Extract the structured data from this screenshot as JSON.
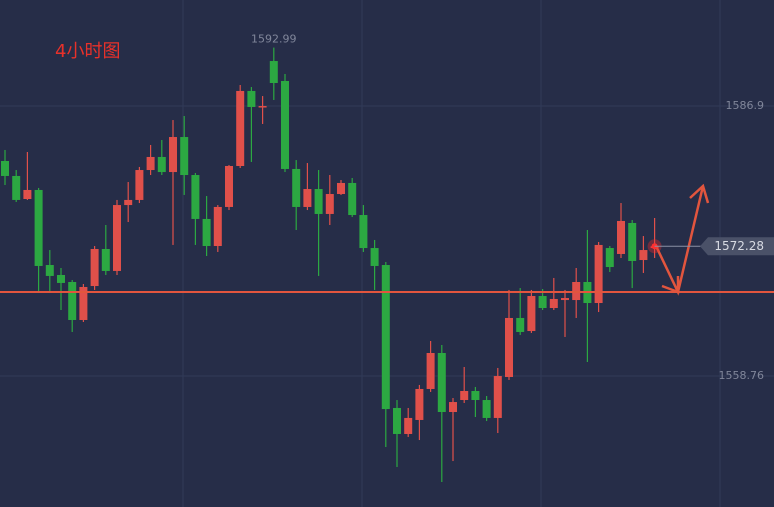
{
  "chart_data": {
    "type": "candlestick",
    "title": "4小时图",
    "up_color": "#e0504a",
    "down_color": "#2ca842",
    "hline_color": "#e2553e",
    "ylim": [
      1545.11,
      1597.95
    ],
    "yticks": [
      1558.76,
      1586.9
    ],
    "grid": true,
    "hline": 1567.52,
    "open": [
      1581.17,
      1579.61,
      1577.21,
      1578.15,
      1570.33,
      1569.29,
      1568.56,
      1564.6,
      1568.14,
      1572.0,
      1569.71,
      1576.58,
      1577.11,
      1580.23,
      1581.59,
      1580.02,
      1583.67,
      1579.71,
      1575.13,
      1572.31,
      1576.38,
      1580.65,
      1588.47,
      1586.8,
      1591.59,
      1589.51,
      1580.34,
      1576.38,
      1578.25,
      1575.65,
      1577.73,
      1578.88,
      1575.54,
      1572.1,
      1570.33,
      1555.43,
      1552.72,
      1554.18,
      1557.41,
      1561.16,
      1555.01,
      1556.26,
      1557.2,
      1556.26,
      1554.39,
      1558.66,
      1564.81,
      1563.45,
      1567.1,
      1565.85,
      1566.68,
      1566.68,
      1568.56,
      1566.37,
      1572.1,
      1571.48,
      1574.71,
      1570.85,
      1572.1
    ],
    "high": [
      1582.32,
      1580.23,
      1582.11,
      1578.36,
      1571.89,
      1570.02,
      1568.77,
      1568.35,
      1572.31,
      1574.5,
      1577.11,
      1578.98,
      1580.55,
      1582.84,
      1583.36,
      1585.44,
      1585.86,
      1579.92,
      1577.52,
      1576.58,
      1580.75,
      1589.09,
      1588.88,
      1587.94,
      1592.99,
      1590.24,
      1581.27,
      1580.96,
      1580.23,
      1579.71,
      1579.19,
      1579.4,
      1576.58,
      1572.94,
      1570.64,
      1556.26,
      1555.43,
      1557.83,
      1562.41,
      1561.99,
      1556.47,
      1559.7,
      1557.62,
      1556.68,
      1559.6,
      1567.73,
      1567.93,
      1567.73,
      1567.83,
      1568.98,
      1567.73,
      1570.02,
      1573.98,
      1572.73,
      1572.31,
      1576.79,
      1575.02,
      1573.35,
      1575.23
    ],
    "low": [
      1578.67,
      1576.9,
      1577.11,
      1567.52,
      1567.52,
      1565.64,
      1563.35,
      1564.39,
      1567.73,
      1569.29,
      1569.29,
      1574.81,
      1576.79,
      1579.71,
      1579.71,
      1572.42,
      1577.63,
      1572.42,
      1571.27,
      1571.69,
      1576.06,
      1580.44,
      1581.07,
      1585.03,
      1587.53,
      1580.02,
      1573.98,
      1576.06,
      1569.19,
      1574.5,
      1577.63,
      1575.33,
      1571.69,
      1567.73,
      1551.36,
      1549.28,
      1552.41,
      1552.09,
      1557.1,
      1547.72,
      1549.9,
      1555.95,
      1554.49,
      1554.07,
      1552.82,
      1558.35,
      1563.04,
      1563.25,
      1565.64,
      1565.64,
      1562.83,
      1564.81,
      1560.22,
      1565.43,
      1569.6,
      1571.06,
      1567.93,
      1569.5,
      1571.06
    ],
    "close": [
      1579.61,
      1577.11,
      1578.15,
      1570.23,
      1569.19,
      1568.46,
      1564.6,
      1568.04,
      1572.0,
      1569.71,
      1576.58,
      1577.11,
      1580.23,
      1581.59,
      1580.02,
      1583.67,
      1579.71,
      1575.13,
      1572.31,
      1576.38,
      1580.65,
      1588.47,
      1586.8,
      1586.9,
      1589.3,
      1580.34,
      1576.38,
      1578.25,
      1575.65,
      1577.73,
      1578.88,
      1575.54,
      1572.1,
      1570.23,
      1555.32,
      1552.72,
      1554.39,
      1557.41,
      1561.16,
      1555.01,
      1556.05,
      1557.2,
      1556.26,
      1554.39,
      1558.76,
      1564.81,
      1563.35,
      1567.1,
      1565.85,
      1566.79,
      1566.89,
      1568.56,
      1566.37,
      1572.42,
      1570.12,
      1574.92,
      1570.75,
      1571.89,
      1572.28
    ]
  }
}
